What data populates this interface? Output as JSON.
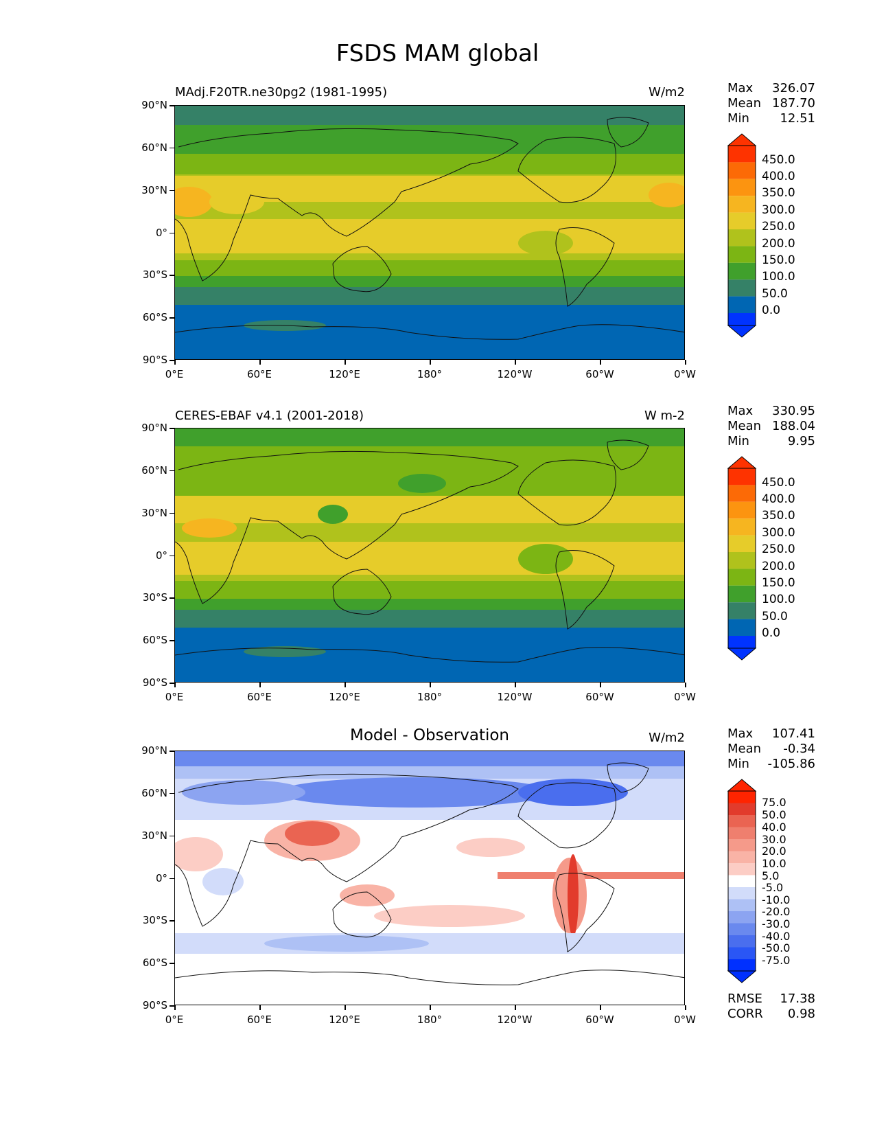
{
  "title": "FSDS MAM global",
  "lat_labels": [
    "90°N",
    "60°N",
    "30°N",
    "0°",
    "30°S",
    "60°S",
    "90°S"
  ],
  "lon_labels": [
    "0°E",
    "60°E",
    "120°E",
    "180°",
    "120°W",
    "60°W",
    "0°W"
  ],
  "colors": {
    "field_levels": [
      "#0033ff",
      "#0066b3",
      "#358167",
      "#40a02c",
      "#7cb514",
      "#b0c21c",
      "#e6cc2a",
      "#f6b520",
      "#fc9410",
      "#fc6a06",
      "#fe3300"
    ],
    "diff_levels": [
      "#0030ff",
      "#2a56f5",
      "#4a6eee",
      "#6a89ee",
      "#8ca4f1",
      "#aec1f5",
      "#d2dcfa",
      "#ffffff",
      "#fde6e2",
      "#fccdc5",
      "#f9b3a6",
      "#f59a8a",
      "#ef7f6e",
      "#ea6452",
      "#e23b2c",
      "#ff2400"
    ]
  },
  "panels": [
    {
      "title": "MAdj.F20TR.ne30pg2 (1981-1995)",
      "units": "W/m2",
      "stats": [
        {
          "label": "Max",
          "value": "326.07"
        },
        {
          "label": "Mean",
          "value": "187.70"
        },
        {
          "label": "Min",
          "value": "12.51"
        }
      ],
      "colorbar_labels": [
        "450.0",
        "400.0",
        "350.0",
        "300.0",
        "250.0",
        "200.0",
        "150.0",
        "100.0",
        "50.0",
        "0.0"
      ]
    },
    {
      "title": "CERES-EBAF v4.1 (2001-2018)",
      "units": "W m-2",
      "stats": [
        {
          "label": "Max",
          "value": "330.95"
        },
        {
          "label": "Mean",
          "value": "188.04"
        },
        {
          "label": "Min",
          "value": "9.95"
        }
      ],
      "colorbar_labels": [
        "450.0",
        "400.0",
        "350.0",
        "300.0",
        "250.0",
        "200.0",
        "150.0",
        "100.0",
        "50.0",
        "0.0"
      ]
    },
    {
      "title": "Model - Observation",
      "units": "W/m2",
      "stats": [
        {
          "label": "Max",
          "value": "107.41"
        },
        {
          "label": "Mean",
          "value": "-0.34"
        },
        {
          "label": "Min",
          "value": "-105.86"
        }
      ],
      "colorbar_labels": [
        "75.0",
        "50.0",
        "40.0",
        "30.0",
        "20.0",
        "10.0",
        "5.0",
        "-5.0",
        "-10.0",
        "-20.0",
        "-30.0",
        "-40.0",
        "-50.0",
        "-75.0"
      ],
      "extra_stats": [
        {
          "label": "RMSE",
          "value": "17.38"
        },
        {
          "label": "CORR",
          "value": "0.98"
        }
      ]
    }
  ]
}
